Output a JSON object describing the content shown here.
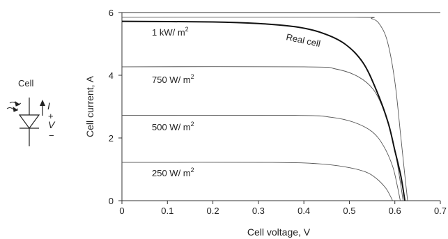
{
  "chart_data": {
    "type": "line",
    "xlabel": "Cell voltage, V",
    "ylabel": "Cell current, A",
    "xlim": [
      0,
      0.7
    ],
    "ylim": [
      0,
      6
    ],
    "xticks": [
      "0",
      "0.1",
      "0.2",
      "0.3",
      "0.4",
      "0.5",
      "0.6",
      "0.7"
    ],
    "yticks": [
      "0",
      "2",
      "4",
      "6"
    ],
    "grid": false,
    "series": [
      {
        "name": "1 kW/ m",
        "superscript": "2",
        "points": [
          [
            0,
            5.85
          ],
          [
            0.5,
            5.85
          ],
          [
            0.55,
            5.8
          ],
          [
            0.57,
            5.55
          ],
          [
            0.585,
            5.0
          ],
          [
            0.6,
            3.8
          ],
          [
            0.612,
            2.2
          ],
          [
            0.622,
            0.8
          ],
          [
            0.628,
            0.0
          ]
        ]
      },
      {
        "name": "750 W/ m",
        "superscript": "2",
        "points": [
          [
            0,
            4.27
          ],
          [
            0.4,
            4.27
          ],
          [
            0.47,
            4.2
          ],
          [
            0.52,
            3.95
          ],
          [
            0.555,
            3.5
          ],
          [
            0.58,
            2.7
          ],
          [
            0.6,
            1.6
          ],
          [
            0.612,
            0.6
          ],
          [
            0.618,
            0.0
          ]
        ]
      },
      {
        "name": "500 W/ m",
        "superscript": "2",
        "points": [
          [
            0,
            2.72
          ],
          [
            0.38,
            2.72
          ],
          [
            0.46,
            2.66
          ],
          [
            0.51,
            2.5
          ],
          [
            0.55,
            2.2
          ],
          [
            0.575,
            1.75
          ],
          [
            0.595,
            1.1
          ],
          [
            0.605,
            0.5
          ],
          [
            0.612,
            0.0
          ]
        ]
      },
      {
        "name": "250 W/ m",
        "superscript": "2",
        "points": [
          [
            0,
            1.22
          ],
          [
            0.33,
            1.22
          ],
          [
            0.43,
            1.18
          ],
          [
            0.49,
            1.08
          ],
          [
            0.535,
            0.92
          ],
          [
            0.56,
            0.7
          ],
          [
            0.58,
            0.4
          ],
          [
            0.59,
            0.15
          ],
          [
            0.595,
            0.0
          ]
        ]
      },
      {
        "name": "Real cell",
        "points": [
          [
            0,
            5.72
          ],
          [
            0.2,
            5.7
          ],
          [
            0.3,
            5.65
          ],
          [
            0.38,
            5.55
          ],
          [
            0.44,
            5.35
          ],
          [
            0.49,
            5.0
          ],
          [
            0.53,
            4.4
          ],
          [
            0.56,
            3.5
          ],
          [
            0.585,
            2.5
          ],
          [
            0.6,
            1.6
          ],
          [
            0.613,
            0.8
          ],
          [
            0.622,
            0.0
          ]
        ]
      }
    ]
  },
  "cell_symbol": {
    "title": "Cell",
    "current_symbol": "I",
    "voltage_symbol": "V",
    "plus": "+",
    "minus": "−"
  }
}
